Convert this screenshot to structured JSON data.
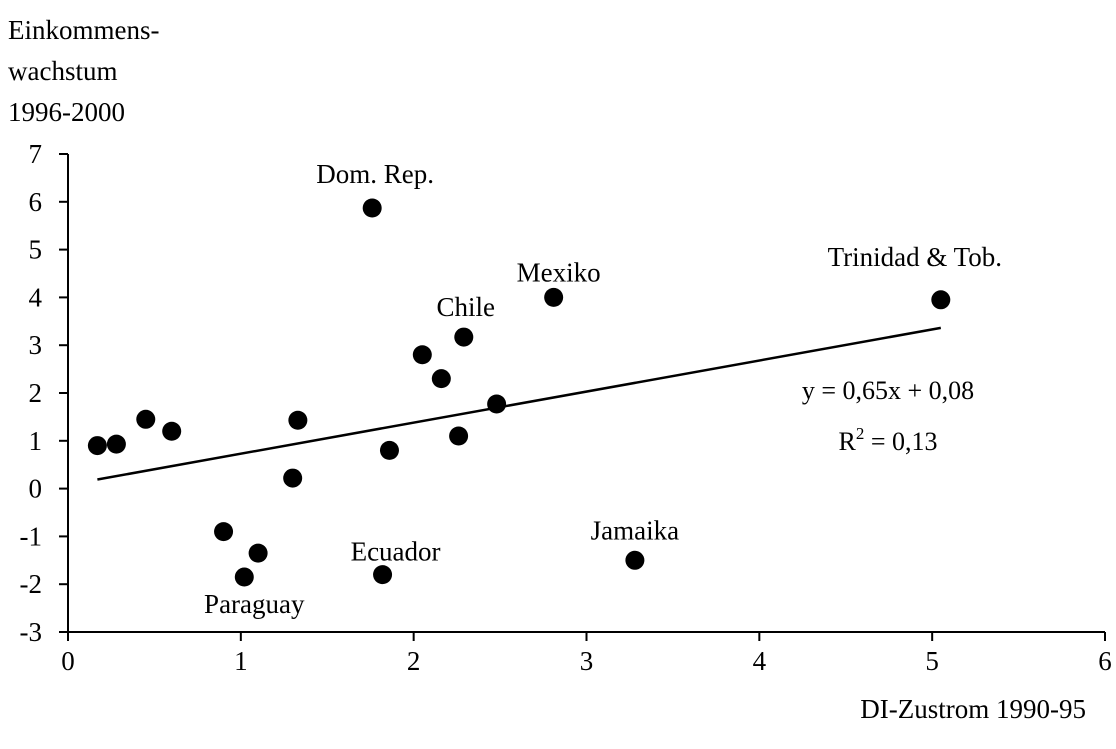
{
  "chart_data": {
    "type": "scatter",
    "ylabel_lines": [
      "Einkommens-",
      "wachstum",
      "1996-2000"
    ],
    "xlabel": "DI-Zustrom 1990-95",
    "xlim": [
      0,
      6
    ],
    "ylim": [
      -3,
      7
    ],
    "x_ticks": [
      "0",
      "1",
      "2",
      "3",
      "4",
      "5",
      "6"
    ],
    "y_ticks": [
      "-3",
      "-2",
      "-1",
      "0",
      "1",
      "2",
      "3",
      "4",
      "5",
      "6",
      "7"
    ],
    "grid": false,
    "points": [
      {
        "x": 0.17,
        "y": 0.9,
        "label": ""
      },
      {
        "x": 0.28,
        "y": 0.93,
        "label": ""
      },
      {
        "x": 0.45,
        "y": 1.45,
        "label": ""
      },
      {
        "x": 0.6,
        "y": 1.2,
        "label": ""
      },
      {
        "x": 0.9,
        "y": -0.9,
        "label": ""
      },
      {
        "x": 1.02,
        "y": -1.85,
        "label": "Paraguay"
      },
      {
        "x": 1.1,
        "y": -1.35,
        "label": ""
      },
      {
        "x": 1.3,
        "y": 0.22,
        "label": ""
      },
      {
        "x": 1.33,
        "y": 1.43,
        "label": ""
      },
      {
        "x": 1.76,
        "y": 5.87,
        "label": "Dom. Rep."
      },
      {
        "x": 1.82,
        "y": -1.8,
        "label": "Ecuador"
      },
      {
        "x": 1.86,
        "y": 0.8,
        "label": ""
      },
      {
        "x": 2.05,
        "y": 2.8,
        "label": ""
      },
      {
        "x": 2.16,
        "y": 2.3,
        "label": ""
      },
      {
        "x": 2.26,
        "y": 1.1,
        "label": ""
      },
      {
        "x": 2.29,
        "y": 3.17,
        "label": "Chile"
      },
      {
        "x": 2.48,
        "y": 1.77,
        "label": ""
      },
      {
        "x": 2.81,
        "y": 4.0,
        "label": "Mexiko"
      },
      {
        "x": 3.28,
        "y": -1.5,
        "label": "Jamaika"
      },
      {
        "x": 5.05,
        "y": 3.95,
        "label": "Trinidad & Tob."
      }
    ],
    "trendline": {
      "slope": 0.65,
      "intercept": 0.08,
      "x_range": [
        0.17,
        5.05
      ],
      "equation": "y = 0,65x + 0,08",
      "r2_prefix": "R",
      "r2_sup": "2",
      "r2_suffix": " = 0,13"
    }
  }
}
